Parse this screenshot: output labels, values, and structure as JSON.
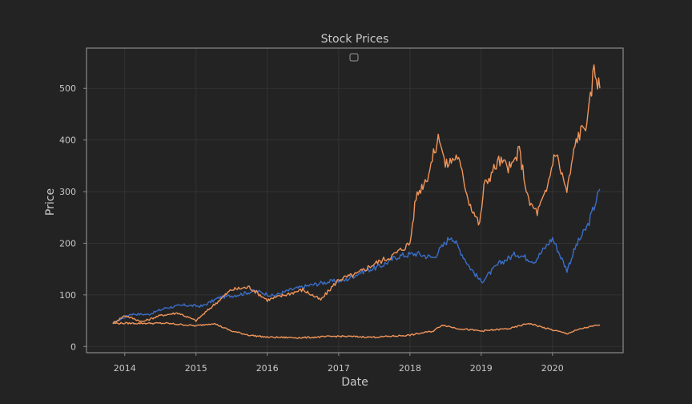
{
  "chart_data": {
    "type": "line",
    "title": "Stock Prices",
    "xlabel": "Date",
    "ylabel": "Price",
    "xlim": [
      "2013-06-19",
      "2020-12-28"
    ],
    "ylim": [
      -12,
      578
    ],
    "x_ticks": [
      "2014",
      "2015",
      "2016",
      "2017",
      "2018",
      "2019",
      "2020"
    ],
    "y_ticks": [
      0,
      100,
      200,
      300,
      400,
      500
    ],
    "grid": true,
    "legend": "top-center, empty",
    "series": [
      {
        "color": "#3a6ec8",
        "x": [
          "2013-11-01",
          "2014-02-01",
          "2014-05-01",
          "2014-08-01",
          "2014-11-01",
          "2015-02-01",
          "2015-05-01",
          "2015-08-01",
          "2015-11-01",
          "2016-02-01",
          "2016-05-01",
          "2016-08-01",
          "2016-11-01",
          "2017-02-01",
          "2017-05-01",
          "2017-08-01",
          "2017-11-01",
          "2018-02-01",
          "2018-05-01",
          "2018-08-01",
          "2018-11-01",
          "2019-01-01",
          "2019-04-01",
          "2019-07-01",
          "2019-10-01",
          "2020-01-01",
          "2020-03-15",
          "2020-05-01",
          "2020-07-01",
          "2020-08-31"
        ],
        "y": [
          45,
          63,
          62,
          75,
          80,
          78,
          95,
          100,
          108,
          98,
          110,
          118,
          125,
          128,
          145,
          155,
          175,
          180,
          172,
          215,
          155,
          125,
          160,
          180,
          165,
          210,
          148,
          195,
          235,
          305
        ]
      },
      {
        "color": "#f0955a",
        "x": [
          "2013-11-01",
          "2014-01-01",
          "2014-04-01",
          "2014-07-01",
          "2014-10-01",
          "2015-01-01",
          "2015-04-01",
          "2015-07-01",
          "2015-10-01",
          "2016-01-01",
          "2016-04-01",
          "2016-07-01",
          "2016-10-01",
          "2017-01-01",
          "2017-04-01",
          "2017-07-01",
          "2017-10-01",
          "2018-01-01",
          "2018-02-01",
          "2018-04-01",
          "2018-06-01",
          "2018-07-01",
          "2018-09-01",
          "2018-11-01",
          "2018-12-24",
          "2019-01-15",
          "2019-04-01",
          "2019-06-01",
          "2019-07-15",
          "2019-09-01",
          "2019-10-15",
          "2019-12-01",
          "2020-01-15",
          "2020-03-15",
          "2020-05-01",
          "2020-07-01",
          "2020-08-01",
          "2020-08-31"
        ],
        "y": [
          45,
          60,
          48,
          60,
          65,
          50,
          80,
          110,
          115,
          90,
          100,
          110,
          90,
          130,
          140,
          160,
          175,
          200,
          290,
          330,
          410,
          350,
          370,
          280,
          235,
          310,
          360,
          345,
          380,
          280,
          260,
          300,
          380,
          300,
          400,
          440,
          540,
          500
        ]
      },
      {
        "color": "#f0955a",
        "x": [
          "2013-11-01",
          "2014-04-01",
          "2014-08-01",
          "2015-01-01",
          "2015-04-01",
          "2015-07-01",
          "2015-10-01",
          "2016-01-01",
          "2016-07-01",
          "2017-01-01",
          "2017-07-01",
          "2018-01-01",
          "2018-05-01",
          "2018-06-15",
          "2018-09-01",
          "2019-01-01",
          "2019-06-01",
          "2019-09-01",
          "2019-12-01",
          "2020-03-15",
          "2020-06-01",
          "2020-08-31"
        ],
        "y": [
          45,
          45,
          45,
          40,
          45,
          30,
          22,
          18,
          17,
          20,
          18,
          22,
          30,
          42,
          35,
          30,
          35,
          45,
          35,
          25,
          35,
          42
        ]
      }
    ]
  }
}
